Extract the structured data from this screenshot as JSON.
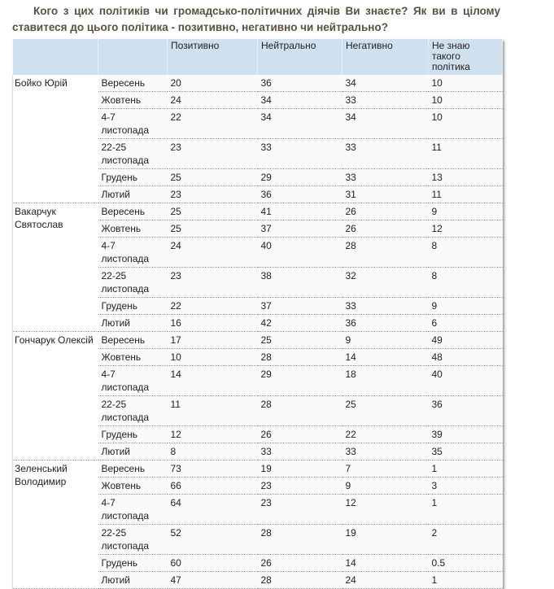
{
  "question": "Кого з цих політиків чи громадсько-політичних діячів Ви знаєте? Як ви в цілому ставитеся до цього політика - позитивно, негативно чи нейтрально?",
  "headers": [
    "",
    "",
    "Позитивно",
    "Нейтрально",
    "Негативно",
    "Не знаю такого політика"
  ],
  "groups": [
    {
      "name": "Бойко Юрій",
      "rows": [
        [
          "Вересень",
          "20",
          "36",
          "34",
          "10"
        ],
        [
          "Жовтень",
          "24",
          "34",
          "33",
          "10"
        ],
        [
          "4-7 листопада",
          "22",
          "34",
          "34",
          "10"
        ],
        [
          "22-25 листопада",
          "23",
          "33",
          "33",
          "11"
        ],
        [
          "Грудень",
          "25",
          "29",
          "33",
          "13"
        ],
        [
          "Лютий",
          "23",
          "36",
          "31",
          "11"
        ]
      ]
    },
    {
      "name": "Вакарчук Святослав",
      "rows": [
        [
          "Вересень",
          "25",
          "41",
          "26",
          "9"
        ],
        [
          "Жовтень",
          "25",
          "37",
          "26",
          "12"
        ],
        [
          "4-7 листопада",
          "24",
          "40",
          "28",
          "8"
        ],
        [
          "22-25 листопада",
          "23",
          "38",
          "32",
          "8"
        ],
        [
          "Грудень",
          "22",
          "37",
          "33",
          "9"
        ],
        [
          "Лютий",
          "16",
          "42",
          "36",
          "6"
        ]
      ]
    },
    {
      "name": "Гончарук Олексій",
      "rows": [
        [
          "Вересень",
          "17",
          "25",
          "9",
          "49"
        ],
        [
          "Жовтень",
          "10",
          "28",
          "14",
          "48"
        ],
        [
          "4-7 листопада",
          "14",
          "29",
          "18",
          "40"
        ],
        [
          "22-25 листопада",
          "11",
          "28",
          "25",
          "36"
        ],
        [
          "Грудень",
          "12",
          "26",
          "22",
          "39"
        ],
        [
          "Лютий",
          "8",
          "33",
          "33",
          "35"
        ]
      ]
    },
    {
      "name": "Зеленський Володимир",
      "rows": [
        [
          "Вересень",
          "73",
          "19",
          "7",
          "1"
        ],
        [
          "Жовтень",
          "66",
          "23",
          "9",
          "3"
        ],
        [
          "4-7 листопада",
          "64",
          "23",
          "12",
          "1"
        ],
        [
          "22-25 листопада",
          "52",
          "28",
          "19",
          "2"
        ],
        [
          "Грудень",
          "60",
          "26",
          "14",
          "0.5"
        ],
        [
          "Лютий",
          "47",
          "28",
          "24",
          "1"
        ]
      ]
    }
  ]
}
